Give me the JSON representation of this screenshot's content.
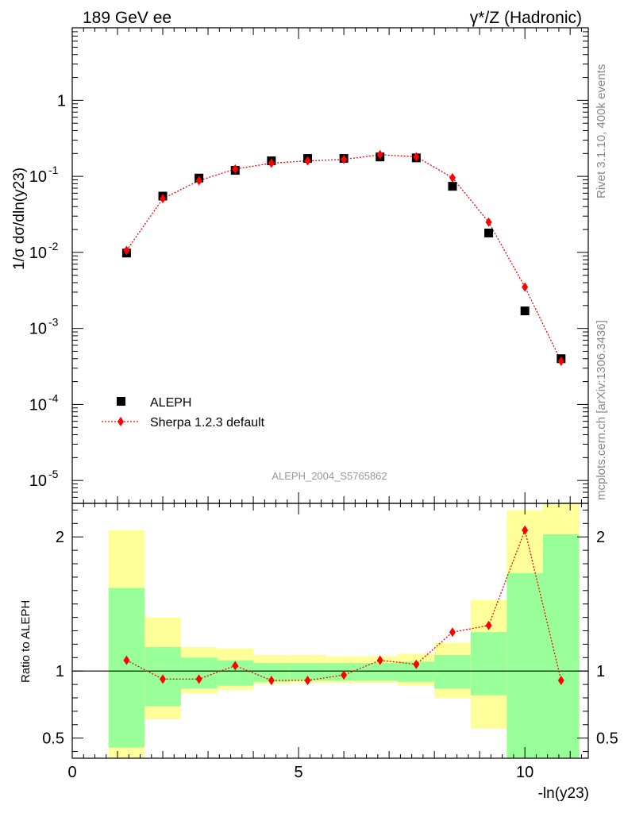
{
  "header": {
    "left": "189 GeV ee",
    "right": "γ*/Z (Hadronic)"
  },
  "side": {
    "rivet": "Rivet 3.1.10,  400k events",
    "mcplots": "mcplots.cern.ch [arXiv:1306.3436]"
  },
  "colors": {
    "data": "#000000",
    "mc": "#ff0000",
    "band_stat": "#99ff99",
    "band_total": "#ffff99"
  },
  "chart_data": [
    {
      "type": "scatter",
      "panel": "main",
      "ylabel": "1/σ  dσ/dln(y23)",
      "yscale": "log",
      "ylim": [
        5e-06,
        9
      ],
      "xlim": [
        0,
        11.4
      ],
      "ytick_labels": [
        "1",
        "10^-1",
        "10^-2",
        "10^-3",
        "10^-4",
        "10^-5"
      ],
      "watermark": "ALEPH_2004_S5765862",
      "legend": {
        "position": "bottom-left",
        "entries": [
          "ALEPH",
          "Sherpa 1.2.3 default"
        ]
      },
      "series": [
        {
          "name": "ALEPH",
          "marker": "square",
          "x": [
            1.2,
            2.0,
            2.8,
            3.6,
            4.4,
            5.2,
            6.0,
            6.8,
            7.6,
            8.4,
            9.2,
            10.0,
            10.8
          ],
          "y": [
            0.0098,
            0.055,
            0.095,
            0.12,
            0.16,
            0.172,
            0.172,
            0.18,
            0.175,
            0.074,
            0.018,
            0.0017,
            0.0004
          ]
        },
        {
          "name": "Sherpa 1.2.3 default",
          "marker": "diamond",
          "line": "dotted",
          "x": [
            1.2,
            2.0,
            2.8,
            3.6,
            4.4,
            5.2,
            6.0,
            6.8,
            7.6,
            8.4,
            9.2,
            10.0,
            10.8
          ],
          "y": [
            0.0106,
            0.051,
            0.088,
            0.125,
            0.149,
            0.16,
            0.167,
            0.193,
            0.181,
            0.096,
            0.025,
            0.0035,
            0.00037
          ]
        }
      ]
    },
    {
      "type": "scatter",
      "panel": "ratio",
      "xlabel": "-ln(y23)",
      "ylabel": "Ratio to ALEPH",
      "xlim": [
        0,
        11.4
      ],
      "ylim": [
        0.35,
        2.25
      ],
      "xticks": [
        0,
        5,
        10
      ],
      "yticks": [
        0.5,
        1,
        2
      ],
      "reference_line": 1,
      "bands": {
        "x_edges": [
          0.8,
          1.6,
          2.4,
          3.2,
          4.0,
          4.8,
          5.6,
          6.4,
          7.2,
          8.0,
          8.8,
          9.6,
          10.4,
          11.2
        ],
        "stat_lo": [
          0.43,
          0.74,
          0.87,
          0.89,
          0.92,
          0.93,
          0.93,
          0.93,
          0.92,
          0.87,
          0.82,
          0.35,
          0.35
        ],
        "stat_hi": [
          1.62,
          1.18,
          1.1,
          1.08,
          1.06,
          1.06,
          1.06,
          1.06,
          1.07,
          1.12,
          1.29,
          1.73,
          2.02
        ],
        "total_lo": [
          0.35,
          0.64,
          0.83,
          0.86,
          0.9,
          0.91,
          0.91,
          0.91,
          0.89,
          0.8,
          0.57,
          0.35,
          0.35
        ],
        "total_hi": [
          2.05,
          1.4,
          1.18,
          1.17,
          1.12,
          1.12,
          1.11,
          1.11,
          1.13,
          1.21,
          1.53,
          2.2,
          2.25
        ]
      },
      "series": [
        {
          "name": "Sherpa 1.2.3 default",
          "x": [
            1.2,
            2.0,
            2.8,
            3.6,
            4.4,
            5.2,
            6.0,
            6.8,
            7.6,
            8.4,
            9.2,
            10.0,
            10.8
          ],
          "y": [
            1.08,
            0.94,
            0.94,
            1.04,
            0.93,
            0.93,
            0.97,
            1.08,
            1.05,
            1.29,
            1.34,
            2.05,
            0.93
          ]
        }
      ]
    }
  ]
}
